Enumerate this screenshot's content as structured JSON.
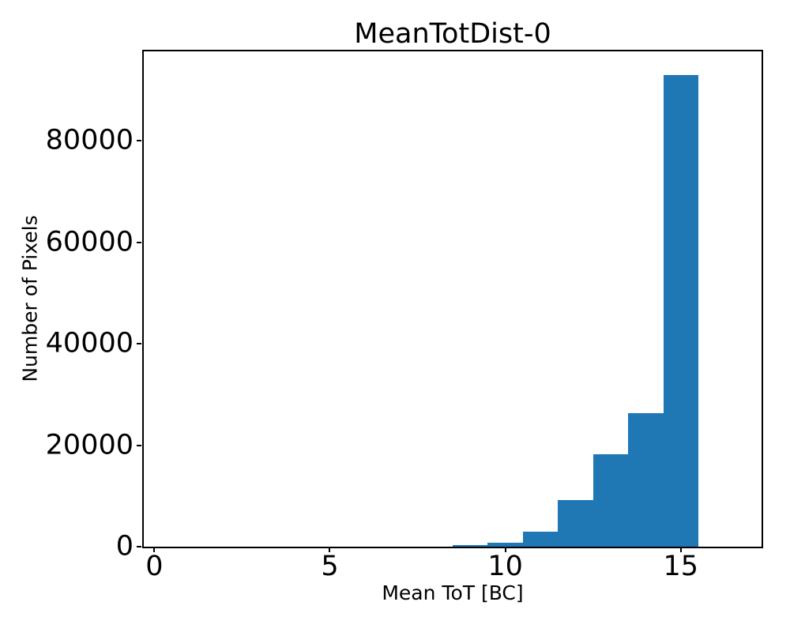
{
  "chart_data": {
    "type": "bar",
    "subtype": "histogram",
    "title": "MeanTotDist-0",
    "xlabel": "Mean ToT [BC]",
    "ylabel": "Number of Pixels",
    "bar_color": "#1f77b4",
    "axis_color": "#000000",
    "background_color": "#ffffff",
    "grid": false,
    "legend": null,
    "xlim": [
      -0.3,
      17.3
    ],
    "ylim": [
      0,
      97650
    ],
    "xticks": {
      "values": [
        0,
        5,
        10,
        15
      ],
      "labels": [
        "0",
        "5",
        "10",
        "15"
      ]
    },
    "yticks": {
      "values": [
        0,
        20000,
        40000,
        60000,
        80000
      ],
      "labels": [
        "0",
        "20000",
        "40000",
        "60000",
        "80000"
      ]
    },
    "bins": {
      "edges": [
        8.5,
        9.5,
        10.5,
        11.5,
        12.5,
        13.5,
        14.5,
        15.5
      ],
      "counts": [
        300,
        750,
        3000,
        9200,
        18200,
        26300,
        93000
      ]
    }
  }
}
